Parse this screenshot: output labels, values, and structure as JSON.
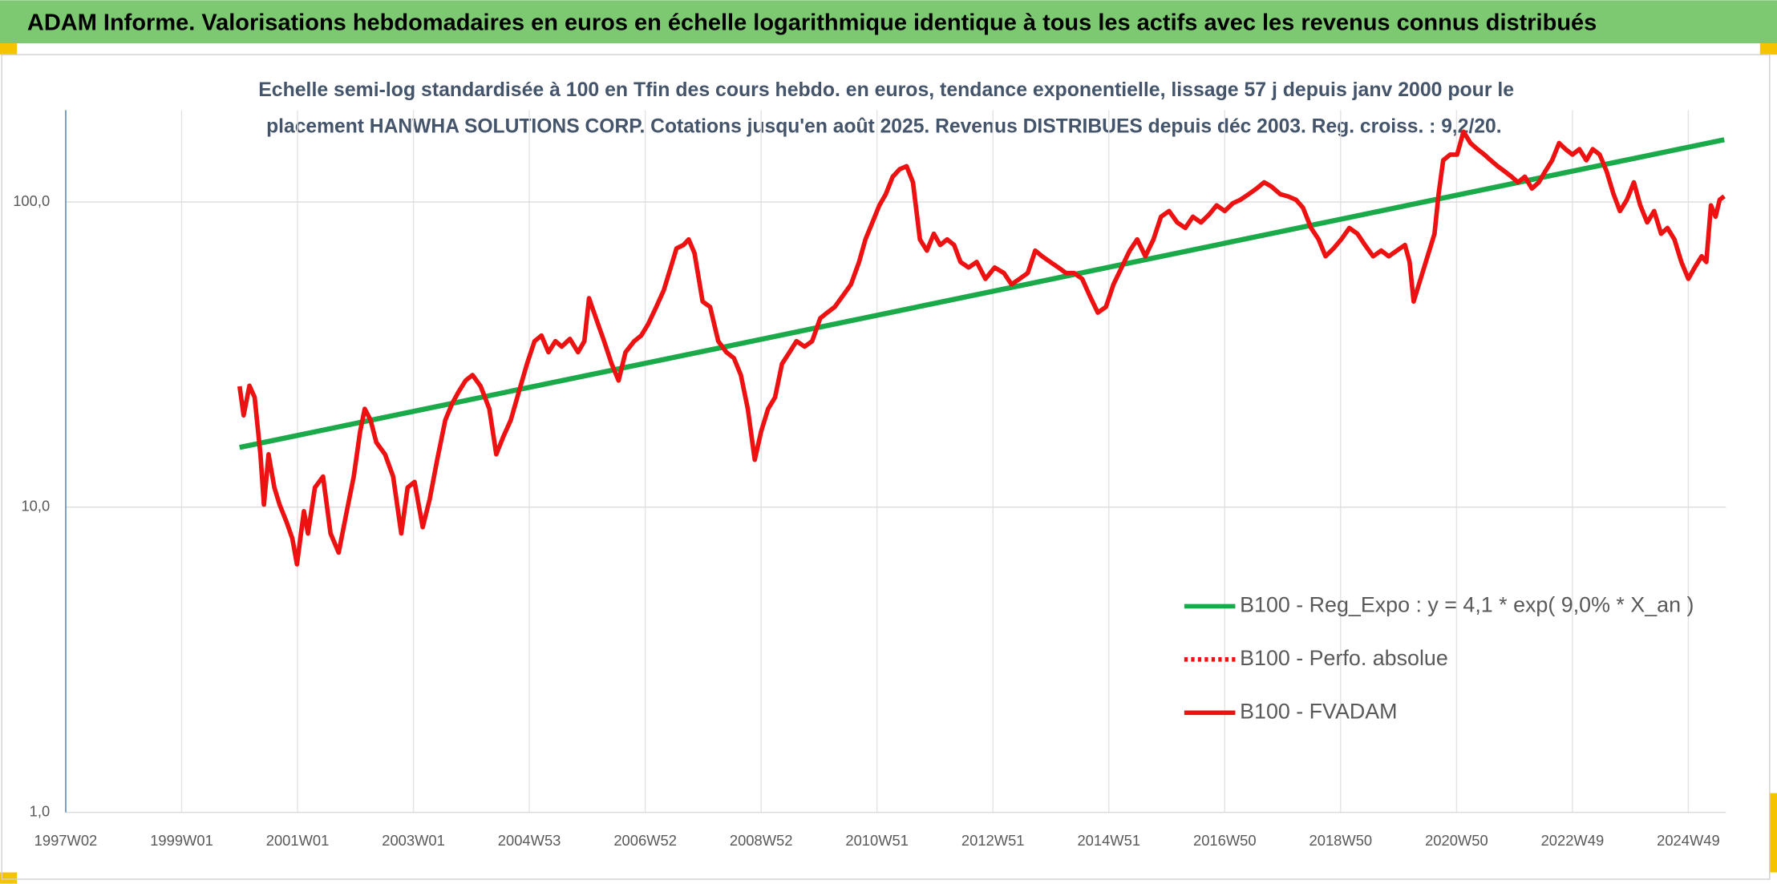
{
  "header": {
    "title": "ADAM Informe. Valorisations hebdomadaires en euros en échelle logarithmique identique à tous les actifs avec les revenus connus distribués"
  },
  "chart_data": {
    "type": "line",
    "title": [
      "Echelle semi-log standardisée à 100 en Tfin des cours hebdo. en euros, tendance exponentielle, lissage 57 j depuis janv 2000 pour le",
      "placement HANWHA SOLUTIONS CORP. Cotations jusqu'en août 2025. Revenus DISTRIBUES depuis déc 2003. Reg. croiss. : 9,2/20."
    ],
    "log_y": true,
    "grid": true,
    "legend": "lower right",
    "xlim": [
      1997.0,
      2025.65
    ],
    "ylim": [
      1,
      200
    ],
    "yticks": [
      {
        "value": 1,
        "label": "1,0"
      },
      {
        "value": 10,
        "label": "10,0"
      },
      {
        "value": 100,
        "label": "100,0"
      }
    ],
    "xticks": [
      {
        "value": 1997.0,
        "label": "1997W02"
      },
      {
        "value": 1999.0,
        "label": "1999W01"
      },
      {
        "value": 2001.0,
        "label": "2001W01"
      },
      {
        "value": 2003.0,
        "label": "2003W01"
      },
      {
        "value": 2005.0,
        "label": "2004W53"
      },
      {
        "value": 2007.0,
        "label": "2006W52"
      },
      {
        "value": 2009.0,
        "label": "2008W52"
      },
      {
        "value": 2011.0,
        "label": "2010W51"
      },
      {
        "value": 2013.0,
        "label": "2012W51"
      },
      {
        "value": 2015.0,
        "label": "2014W51"
      },
      {
        "value": 2017.0,
        "label": "2016W50"
      },
      {
        "value": 2019.0,
        "label": "2018W50"
      },
      {
        "value": 2021.0,
        "label": "2020W50"
      },
      {
        "value": 2023.0,
        "label": "2022W49"
      },
      {
        "value": 2025.0,
        "label": "2024W49"
      }
    ],
    "series": [
      {
        "name": "B100 - Reg_Expo : y = 4,1 * exp( 9,0% *  X_an )",
        "color": "#1aaa4a",
        "style": "solid",
        "x": [
          2000.0,
          2025.62
        ],
        "values": [
          15.7,
          160
        ]
      },
      {
        "name": "B100 - Perfo. absolue",
        "color": "#ee1111",
        "style": "dotted",
        "x": [],
        "values": []
      },
      {
        "name": "B100 - FVADAM",
        "color": "#ee1111",
        "style": "solid",
        "x": [
          2000.0,
          2000.07,
          2000.17,
          2000.26,
          2000.36,
          2000.42,
          2000.5,
          2000.6,
          2000.69,
          2000.81,
          2000.91,
          2000.99,
          2001.11,
          2001.18,
          2001.3,
          2001.44,
          2001.57,
          2001.71,
          2001.85,
          2001.97,
          2002.08,
          2002.16,
          2002.26,
          2002.36,
          2002.51,
          2002.65,
          2002.79,
          2002.9,
          2003.02,
          2003.16,
          2003.28,
          2003.41,
          2003.55,
          2003.67,
          2003.78,
          2003.9,
          2004.02,
          2004.16,
          2004.31,
          2004.43,
          2004.55,
          2004.68,
          2004.82,
          2004.96,
          2005.09,
          2005.21,
          2005.33,
          2005.45,
          2005.56,
          2005.7,
          2005.84,
          2005.95,
          2006.03,
          2006.15,
          2006.29,
          2006.42,
          2006.54,
          2006.66,
          2006.81,
          2006.93,
          2007.05,
          2007.19,
          2007.32,
          2007.44,
          2007.54,
          2007.66,
          2007.75,
          2007.85,
          2007.99,
          2008.12,
          2008.26,
          2008.4,
          2008.53,
          2008.65,
          2008.77,
          2008.89,
          2009.0,
          2009.12,
          2009.24,
          2009.36,
          2009.49,
          2009.61,
          2009.75,
          2009.88,
          2010.02,
          2010.14,
          2010.27,
          2010.41,
          2010.55,
          2010.69,
          2010.8,
          2010.92,
          2011.04,
          2011.15,
          2011.27,
          2011.39,
          2011.51,
          2011.62,
          2011.74,
          2011.86,
          2011.98,
          2012.09,
          2012.21,
          2012.33,
          2012.44,
          2012.58,
          2012.72,
          2012.87,
          2013.03,
          2013.19,
          2013.32,
          2013.46,
          2013.6,
          2013.73,
          2013.85,
          2013.99,
          2014.13,
          2014.26,
          2014.4,
          2014.54,
          2014.67,
          2014.81,
          2014.95,
          2015.08,
          2015.22,
          2015.36,
          2015.49,
          2015.63,
          2015.77,
          2015.9,
          2016.04,
          2016.18,
          2016.32,
          2016.45,
          2016.59,
          2016.73,
          2016.86,
          2017.0,
          2017.14,
          2017.27,
          2017.41,
          2017.55,
          2017.68,
          2017.8,
          2017.96,
          2018.09,
          2018.23,
          2018.35,
          2018.49,
          2018.62,
          2018.74,
          2018.88,
          2019.01,
          2019.15,
          2019.29,
          2019.42,
          2019.56,
          2019.7,
          2019.83,
          2019.97,
          2020.11,
          2020.19,
          2020.26,
          2020.38,
          2020.5,
          2020.62,
          2020.69,
          2020.77,
          2020.89,
          2021.01,
          2021.12,
          2021.24,
          2021.36,
          2021.48,
          2021.59,
          2021.71,
          2021.83,
          2021.95,
          2022.06,
          2022.18,
          2022.3,
          2022.42,
          2022.53,
          2022.65,
          2022.77,
          2022.88,
          2023.0,
          2023.12,
          2023.24,
          2023.35,
          2023.47,
          2023.59,
          2023.71,
          2023.82,
          2023.94,
          2024.06,
          2024.17,
          2024.29,
          2024.41,
          2024.53,
          2024.64,
          2024.76,
          2024.88,
          2025.0,
          2025.11,
          2025.23,
          2025.31,
          2025.39,
          2025.47,
          2025.54,
          2025.62
        ],
        "values": [
          24.9,
          20,
          25,
          22.9,
          14.9,
          10.2,
          14.9,
          11.6,
          10.2,
          8.95,
          7.9,
          6.5,
          9.7,
          8.2,
          11.6,
          12.6,
          8.2,
          7.1,
          9.7,
          12.6,
          17.7,
          21,
          19.3,
          16.3,
          14.9,
          12.6,
          8.2,
          11.6,
          12.1,
          8.6,
          10.6,
          14.3,
          19.3,
          21.9,
          23.9,
          26,
          27.1,
          24.9,
          21,
          14.9,
          17,
          19.3,
          23.9,
          29.5,
          35,
          36.5,
          32.2,
          35,
          33.6,
          35.6,
          32.2,
          35,
          48.4,
          41.6,
          35,
          29.5,
          26,
          32.2,
          35,
          36.5,
          39.8,
          45.3,
          51.4,
          61,
          70.5,
          72.3,
          75.4,
          68,
          47.2,
          45.3,
          35,
          32.2,
          30.8,
          27.1,
          21,
          14.3,
          17.7,
          21,
          22.9,
          29.5,
          32.2,
          35,
          33.6,
          35,
          41.6,
          43.4,
          45.3,
          49.3,
          53.7,
          63.6,
          75.4,
          85.7,
          97.5,
          106,
          121,
          128,
          131,
          116,
          75.4,
          69.3,
          78.7,
          72.3,
          75.4,
          72.3,
          63.6,
          61,
          63.6,
          56,
          61,
          58.5,
          53.7,
          56,
          58.5,
          69.3,
          66.4,
          63.6,
          61,
          58.5,
          58.5,
          56,
          49.3,
          43.4,
          45.3,
          53.7,
          61,
          69.3,
          75.4,
          66.4,
          75.4,
          89.5,
          93.4,
          85.7,
          82.2,
          89.5,
          85.7,
          91,
          97.5,
          93.4,
          99.1,
          101.7,
          106,
          110.7,
          116,
          112.6,
          106,
          104.4,
          101.7,
          95.8,
          82.2,
          75.4,
          66.4,
          70.5,
          75.4,
          82.2,
          78.7,
          72.3,
          66.4,
          69.3,
          66.4,
          69.3,
          72.3,
          63.6,
          47.2,
          56,
          66.4,
          78.7,
          106,
          137,
          143,
          143,
          170,
          156,
          149,
          143,
          137,
          131,
          126,
          121,
          116,
          121,
          110.7,
          116,
          126,
          137,
          156,
          149,
          143,
          149,
          137,
          149,
          143,
          126,
          106,
          93.4,
          101.7,
          116,
          97.5,
          85.7,
          93.4,
          78.7,
          82.2,
          75.4,
          63.6,
          56,
          61,
          66.4,
          63.6,
          97.5,
          89.5,
          101.7,
          104.4
        ]
      }
    ]
  }
}
